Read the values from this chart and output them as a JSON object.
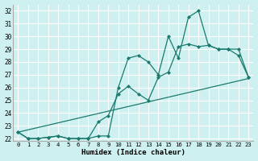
{
  "xlabel": "Humidex (Indice chaleur)",
  "xlim": [
    -0.5,
    23.5
  ],
  "ylim": [
    21.8,
    32.5
  ],
  "xticks": [
    0,
    1,
    2,
    3,
    4,
    5,
    6,
    7,
    8,
    9,
    10,
    11,
    12,
    13,
    14,
    15,
    16,
    17,
    18,
    19,
    20,
    21,
    22,
    23
  ],
  "yticks": [
    22,
    23,
    24,
    25,
    26,
    27,
    28,
    29,
    30,
    31,
    32
  ],
  "bg_color": "#cff0f0",
  "line_color": "#1a7a6e",
  "grid_color": "#ffffff",
  "line1_x": [
    0,
    1,
    2,
    3,
    4,
    5,
    6,
    7,
    8,
    9,
    10,
    11,
    12,
    13,
    14,
    15,
    16,
    17,
    18,
    19,
    20,
    21,
    22,
    23
  ],
  "line1_y": [
    22.5,
    22.0,
    22.0,
    22.1,
    22.2,
    22.0,
    22.0,
    22.0,
    22.2,
    22.2,
    26.0,
    28.3,
    28.5,
    28.0,
    27.0,
    30.0,
    28.3,
    31.5,
    32.0,
    29.3,
    29.0,
    29.0,
    29.0,
    26.8
  ],
  "line2_x": [
    0,
    1,
    2,
    3,
    4,
    5,
    6,
    7,
    8,
    9,
    10,
    11,
    12,
    13,
    14,
    15,
    16,
    17,
    18,
    19,
    20,
    21,
    22,
    23
  ],
  "line2_y": [
    22.5,
    22.0,
    22.0,
    22.1,
    22.2,
    22.0,
    22.0,
    22.0,
    23.3,
    23.8,
    25.5,
    26.1,
    25.5,
    25.0,
    26.8,
    27.2,
    29.2,
    29.4,
    29.2,
    29.3,
    29.0,
    29.0,
    28.5,
    26.8
  ],
  "line3_x": [
    0,
    23
  ],
  "line3_y": [
    22.5,
    26.7
  ],
  "marker_size": 2.5,
  "linewidth": 0.9
}
